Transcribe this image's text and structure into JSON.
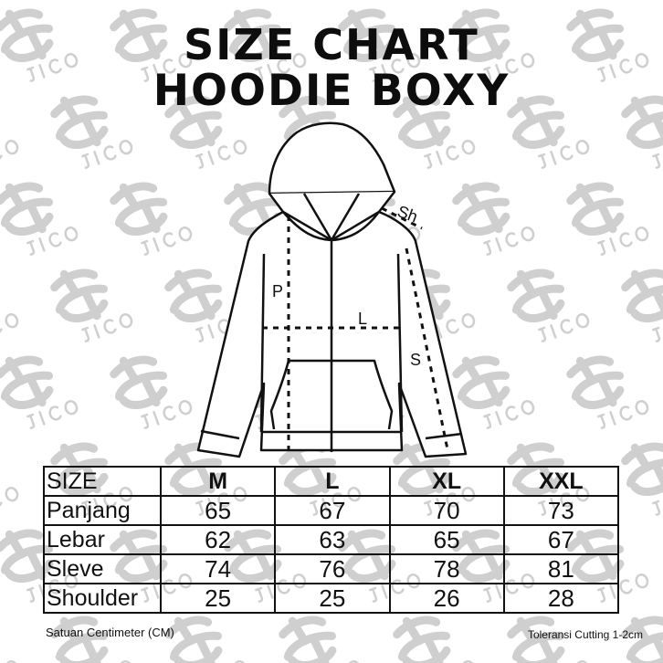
{
  "title_line1": "SIZE CHART",
  "title_line2": "HOODIE BOXY",
  "watermark": "JICO",
  "diagram_labels": {
    "panjang": "P",
    "lebar": "L",
    "sleeve": "S",
    "shoulder": "Sh"
  },
  "table": {
    "header": [
      "SIZE",
      "M",
      "L",
      "XL",
      "XXL"
    ],
    "rows": [
      {
        "label": "Panjang",
        "values": [
          "65",
          "67",
          "70",
          "73"
        ]
      },
      {
        "label": "Lebar",
        "values": [
          "62",
          "63",
          "65",
          "67"
        ]
      },
      {
        "label": "Sleve",
        "values": [
          "74",
          "76",
          "78",
          "81"
        ]
      },
      {
        "label": "Shoulder",
        "values": [
          "25",
          "25",
          "26",
          "28"
        ]
      }
    ]
  },
  "footer_left": "Satuan Centimeter (CM)",
  "footer_right": "Toleransi Cutting 1-2cm",
  "colors": {
    "watermark": "#cfcfcf",
    "ink": "#111111"
  }
}
